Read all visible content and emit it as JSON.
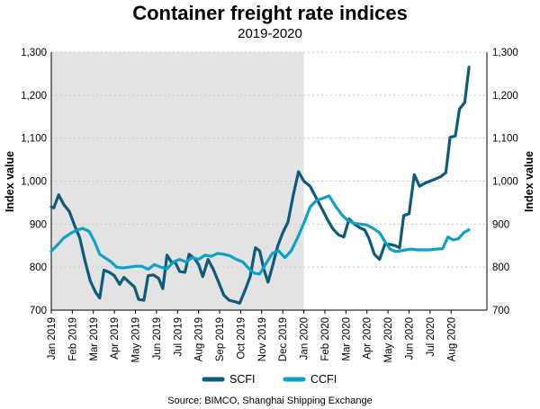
{
  "chart_data": {
    "type": "line",
    "title": "Container freight rate indices",
    "subtitle": "2019-2020",
    "ylabel_left": "Index value",
    "ylabel_right": "Index value",
    "ylim": [
      700,
      1300
    ],
    "yticks": [
      700,
      800,
      900,
      1000,
      1100,
      1200,
      1300
    ],
    "ytick_labels": [
      "700",
      "800",
      "900",
      "1,000",
      "1,100",
      "1,200",
      "1,300"
    ],
    "x_range_months": [
      0,
      20.7
    ],
    "xtick_labels": [
      "Jan 2019",
      "Feb 2019",
      "Mar 2019",
      "Apr 2019",
      "May 2019",
      "Jun 2019",
      "Jul 2019",
      "Aug 2019",
      "Sep 2019",
      "Oct 2019",
      "Nov 2019",
      "Dec 2019",
      "Jan 2020",
      "Feb 2020",
      "Mar 2020",
      "Apr 2020",
      "May 2020",
      "Jun 2020",
      "Jul 2020",
      "Aug 2020"
    ],
    "xtick_positions": [
      0,
      1,
      2,
      3,
      4,
      5,
      6,
      7,
      8,
      9,
      10,
      11,
      12,
      13,
      14,
      15,
      16,
      17,
      18,
      19
    ],
    "shaded_region": {
      "from": 0,
      "to": 12,
      "color": "#e3e3e3",
      "meaning": "2019"
    },
    "grid": true,
    "legend": "bottom-center",
    "source": "Source: BIMCO, Shanghai Shipping Exchange",
    "series": [
      {
        "name": "SCFI",
        "color": "#0d5a7a",
        "points": [
          [
            0,
            940
          ],
          [
            0.12,
            938
          ],
          [
            0.35,
            968
          ],
          [
            0.6,
            945
          ],
          [
            0.85,
            930
          ],
          [
            1.1,
            898
          ],
          [
            1.35,
            868
          ],
          [
            1.6,
            815
          ],
          [
            1.85,
            768
          ],
          [
            2.1,
            742
          ],
          [
            2.3,
            728
          ],
          [
            2.5,
            793
          ],
          [
            2.75,
            788
          ],
          [
            3.0,
            780
          ],
          [
            3.25,
            760
          ],
          [
            3.45,
            776
          ],
          [
            3.7,
            765
          ],
          [
            3.95,
            754
          ],
          [
            4.15,
            725
          ],
          [
            4.4,
            723
          ],
          [
            4.6,
            780
          ],
          [
            4.85,
            782
          ],
          [
            5.1,
            774
          ],
          [
            5.3,
            750
          ],
          [
            5.5,
            828
          ],
          [
            5.7,
            812
          ],
          [
            5.9,
            810
          ],
          [
            6.1,
            790
          ],
          [
            6.35,
            788
          ],
          [
            6.55,
            830
          ],
          [
            6.8,
            820
          ],
          [
            7.0,
            806
          ],
          [
            7.2,
            778
          ],
          [
            7.45,
            818
          ],
          [
            7.7,
            795
          ],
          [
            7.95,
            765
          ],
          [
            8.2,
            735
          ],
          [
            8.45,
            723
          ],
          [
            8.7,
            720
          ],
          [
            8.95,
            716
          ],
          [
            9.2,
            745
          ],
          [
            9.45,
            778
          ],
          [
            9.7,
            845
          ],
          [
            9.9,
            838
          ],
          [
            10.1,
            795
          ],
          [
            10.3,
            765
          ],
          [
            10.5,
            800
          ],
          [
            10.75,
            848
          ],
          [
            11.0,
            880
          ],
          [
            11.25,
            905
          ],
          [
            11.5,
            968
          ],
          [
            11.75,
            1022
          ],
          [
            12.0,
            1000
          ],
          [
            12.3,
            988
          ],
          [
            12.6,
            960
          ],
          [
            12.9,
            932
          ],
          [
            13.15,
            908
          ],
          [
            13.4,
            888
          ],
          [
            13.65,
            875
          ],
          [
            13.9,
            870
          ],
          [
            14.15,
            912
          ],
          [
            14.4,
            900
          ],
          [
            14.65,
            892
          ],
          [
            14.9,
            886
          ],
          [
            15.1,
            866
          ],
          [
            15.35,
            830
          ],
          [
            15.6,
            818
          ],
          [
            15.85,
            853
          ],
          [
            16.1,
            853
          ],
          [
            16.35,
            850
          ],
          [
            16.55,
            845
          ],
          [
            16.75,
            920
          ],
          [
            17.0,
            924
          ],
          [
            17.25,
            1015
          ],
          [
            17.5,
            988
          ],
          [
            17.75,
            995
          ],
          [
            18.0,
            1000
          ],
          [
            18.25,
            1005
          ],
          [
            18.5,
            1010
          ],
          [
            18.75,
            1020
          ],
          [
            18.95,
            1102
          ],
          [
            19.2,
            1105
          ],
          [
            19.4,
            1168
          ],
          [
            19.65,
            1183
          ],
          [
            19.85,
            1265
          ]
        ]
      },
      {
        "name": "CCFI",
        "color": "#0fa0c8",
        "points": [
          [
            0,
            837
          ],
          [
            0.3,
            852
          ],
          [
            0.6,
            868
          ],
          [
            0.9,
            878
          ],
          [
            1.2,
            886
          ],
          [
            1.5,
            890
          ],
          [
            1.8,
            883
          ],
          [
            2.05,
            860
          ],
          [
            2.3,
            830
          ],
          [
            2.6,
            820
          ],
          [
            2.85,
            812
          ],
          [
            3.1,
            800
          ],
          [
            3.4,
            798
          ],
          [
            3.7,
            800
          ],
          [
            4.0,
            802
          ],
          [
            4.3,
            802
          ],
          [
            4.6,
            795
          ],
          [
            4.9,
            806
          ],
          [
            5.2,
            800
          ],
          [
            5.5,
            796
          ],
          [
            5.8,
            812
          ],
          [
            6.1,
            818
          ],
          [
            6.4,
            812
          ],
          [
            6.7,
            822
          ],
          [
            7.0,
            818
          ],
          [
            7.3,
            828
          ],
          [
            7.6,
            825
          ],
          [
            7.9,
            832
          ],
          [
            8.2,
            830
          ],
          [
            8.5,
            826
          ],
          [
            8.8,
            818
          ],
          [
            9.1,
            812
          ],
          [
            9.4,
            796
          ],
          [
            9.65,
            786
          ],
          [
            9.9,
            784
          ],
          [
            10.2,
            808
          ],
          [
            10.5,
            832
          ],
          [
            10.8,
            838
          ],
          [
            11.1,
            822
          ],
          [
            11.4,
            838
          ],
          [
            11.7,
            868
          ],
          [
            12.0,
            902
          ],
          [
            12.3,
            940
          ],
          [
            12.6,
            955
          ],
          [
            12.9,
            960
          ],
          [
            13.2,
            966
          ],
          [
            13.5,
            942
          ],
          [
            13.8,
            922
          ],
          [
            14.1,
            908
          ],
          [
            14.4,
            902
          ],
          [
            14.7,
            900
          ],
          [
            15.0,
            898
          ],
          [
            15.3,
            890
          ],
          [
            15.6,
            880
          ],
          [
            15.85,
            860
          ],
          [
            16.1,
            842
          ],
          [
            16.35,
            836
          ],
          [
            16.6,
            838
          ],
          [
            16.85,
            840
          ],
          [
            17.1,
            842
          ],
          [
            17.4,
            840
          ],
          [
            17.7,
            840
          ],
          [
            18.0,
            840
          ],
          [
            18.3,
            842
          ],
          [
            18.6,
            843
          ],
          [
            18.85,
            870
          ],
          [
            19.1,
            863
          ],
          [
            19.35,
            866
          ],
          [
            19.6,
            880
          ],
          [
            19.85,
            887
          ]
        ]
      }
    ]
  }
}
